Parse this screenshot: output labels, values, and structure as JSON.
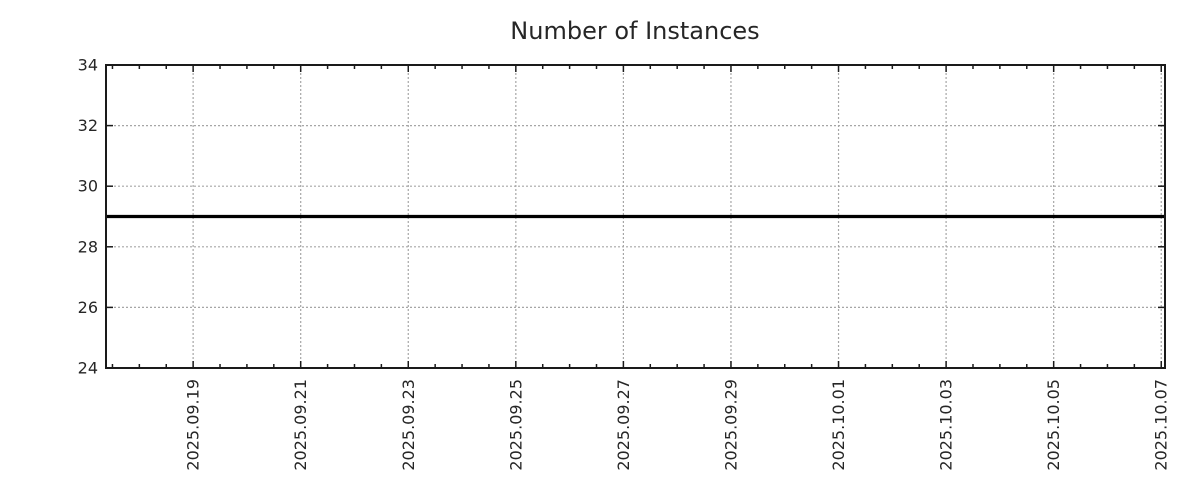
{
  "chart_data": {
    "type": "line",
    "title": "Number of Instances",
    "x_axis": {
      "tick_labels": [
        "2025.09.19",
        "2025.09.21",
        "2025.09.23",
        "2025.09.25",
        "2025.09.27",
        "2025.09.29",
        "2025.10.01",
        "2025.10.03",
        "2025.10.05",
        "2025.10.07"
      ],
      "major_tick_interval_days": 2,
      "minor_tick_interval_days": 0.5,
      "days_before_first_tick": 1.62,
      "days_after_last_tick": 0.07,
      "label_rotation_deg": -90
    },
    "y_axis": {
      "ticks": [
        24,
        26,
        28,
        30,
        32,
        34
      ],
      "min": 24,
      "max": 34
    },
    "series": [
      {
        "name": "Number of Instances",
        "shape": "constant-horizontal-line",
        "value": 29,
        "color": "#000000",
        "line_width": 3.2,
        "x_start": "2025.09.17",
        "x_end": "2025.10.07"
      }
    ],
    "grid": {
      "show": true,
      "color": "#a6a6a6",
      "dash": "2 2"
    },
    "legend": {
      "show": false
    },
    "colors": {
      "text": "#262626",
      "axis": "#1a1a1a",
      "background": "#ffffff"
    }
  }
}
